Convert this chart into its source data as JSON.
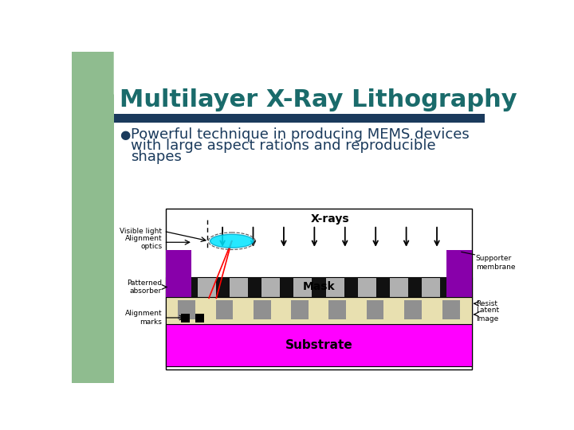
{
  "title": "Multilayer X-Ray Lithography",
  "title_color": "#1a6b6b",
  "title_fontsize": 22,
  "bg_color": "#ffffff",
  "left_bar_color": "#8fbc8f",
  "divider_color": "#1a3a5c",
  "bullet_text_line1": "Powerful technique in producing MEMS devices",
  "bullet_text_line2": "with large aspect rations and reproducible",
  "bullet_text_line3": "shapes",
  "bullet_fontsize": 13,
  "bullet_color": "#1a3a5c",
  "substrate_color": "#ff00ff",
  "resist_layer_color": "#e8e0b0",
  "mask_color": "#b0b0b0",
  "absorber_color": "#111111",
  "purple_block_color": "#8800aa",
  "gray_pattern_color": "#909090",
  "xray_label": "X-rays",
  "substrate_label": "Substrate",
  "mask_label": "Mask",
  "resist_label": "Resist",
  "supporter_label": "Supporter\nmembrane",
  "latent_label": "Latent\nimage",
  "visible_light_label": "Visible light",
  "alignment_optics_label": "Alignment\noptics",
  "patterned_absorber_label": "Patterned\nabsorber",
  "alignment_marks_label": "Alignment\nmarks",
  "label_fontsize": 6.5,
  "diagram_outline": "#000000"
}
